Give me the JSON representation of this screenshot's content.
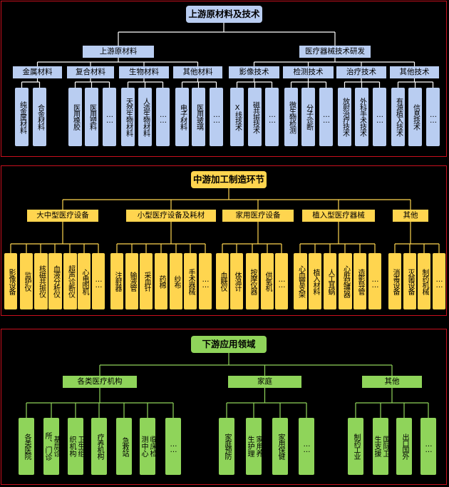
{
  "upstream": {
    "title": "上游原材料及技术",
    "groups": [
      {
        "label": "上游原材料",
        "subs": [
          {
            "label": "金属材料",
            "leaves": [
              "纯金属材料",
              "合金材料"
            ]
          },
          {
            "label": "复合材料",
            "leaves": [
              "医用橡胶",
              "医用塑料",
              "……"
            ]
          },
          {
            "label": "生物材料",
            "leaves": [
              "天然生物材料",
              "人造生物材料",
              "……"
            ]
          },
          {
            "label": "其他材料",
            "leaves": [
              "电子材料",
              "医用玻璃",
              "……"
            ]
          }
        ]
      },
      {
        "label": "医疗器械技术研发",
        "subs": [
          {
            "label": "影像技术",
            "leaves": [
              "X线技术",
              "磁共振技术",
              "……"
            ]
          },
          {
            "label": "检测技术",
            "leaves": [
              "微生物检测",
              "分子诊断",
              "……"
            ]
          },
          {
            "label": "治疗技术",
            "leaves": [
              "放射治疗技术",
              "外科手术技术",
              "……"
            ]
          },
          {
            "label": "其他技术",
            "leaves": [
              "有源植入技术",
              "信息技术",
              "……"
            ]
          }
        ]
      }
    ]
  },
  "midstream": {
    "title": "中游加工制造环节",
    "groups": [
      {
        "label": "大中型医疗设备",
        "leaves": [
          "影像设备",
          "监护仪",
          "核磁共振仪",
          "血液分析仪",
          "超声诊断仪",
          "心电图机",
          "……"
        ]
      },
      {
        "label": "小型医疗设备及耗材",
        "leaves": [
          "注射器",
          "输液管",
          "采血针",
          "药棉",
          "纱布",
          "手术器械",
          "……"
        ]
      },
      {
        "label": "家用医疗设备",
        "leaves": [
          "血糖仪",
          "体温计",
          "按摩仪器",
          "供氧机",
          "……"
        ]
      },
      {
        "label": "植入型医疗器械",
        "leaves": [
          "心血管支架",
          "植入材料",
          "人工耳蜗",
          "心脏起搏器",
          "造影导管",
          "……"
        ]
      },
      {
        "label": "其他",
        "leaves": [
          "消毒设备",
          "灭菌设备",
          "制药机械",
          "……"
        ]
      }
    ]
  },
  "downstream": {
    "title": "下游应用领域",
    "groups": [
      {
        "label": "各类医疗机构",
        "leaves": [
          "各类医院",
          "基层诊所、门诊",
          "卫生组织机构",
          "疗养机构",
          "急救站",
          "临床检测中心",
          "……"
        ]
      },
      {
        "label": "家庭",
        "leaves": [
          "家庭预防",
          "家用养生护理",
          "家用保健",
          "……"
        ]
      },
      {
        "label": "其他",
        "leaves": [
          "制药工业",
          "国际卫生支援",
          "出口国外",
          "……"
        ]
      }
    ]
  },
  "colors": {
    "background": "#000000",
    "border": "#c8101e",
    "upstream": "#b9cdf1",
    "midstream": "#ffd54f",
    "downstream": "#8fd45a",
    "connector_up": "#ffffff",
    "connector_mid": "#ffd54f",
    "connector_down": "#8fd45a"
  }
}
